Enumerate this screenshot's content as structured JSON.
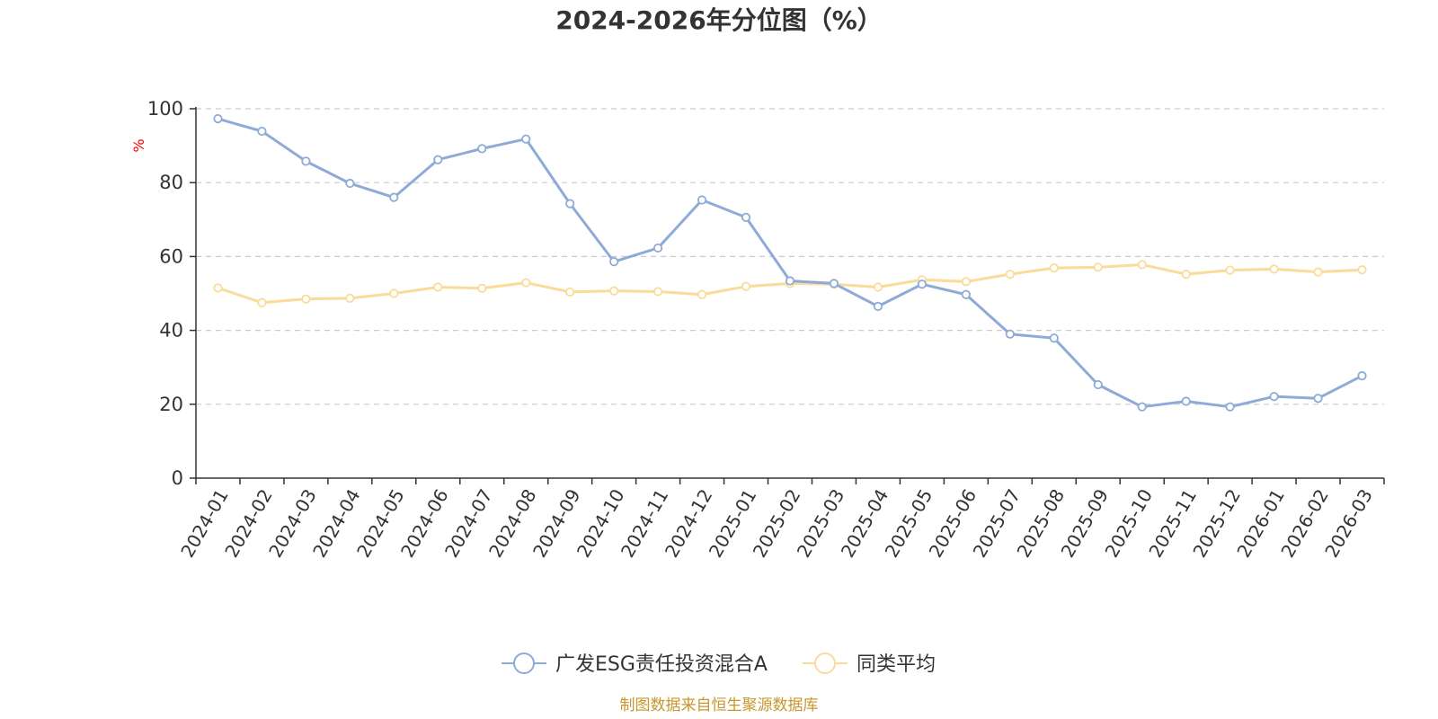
{
  "chart_data": {
    "type": "line",
    "title": "2024-2026年分位图（%）",
    "ylabel": "%",
    "ylim": [
      0,
      100
    ],
    "yticks": [
      0,
      20,
      40,
      60,
      80,
      100
    ],
    "grid": true,
    "legend_position": "bottom-center",
    "categories": [
      "2024-01",
      "2024-02",
      "2024-03",
      "2024-04",
      "2024-05",
      "2024-06",
      "2024-07",
      "2024-08",
      "2024-09",
      "2024-10",
      "2024-11",
      "2024-12",
      "2025-01",
      "2025-02",
      "2025-03",
      "2025-04",
      "2025-05",
      "2025-06",
      "2025-07",
      "2025-08",
      "2025-09",
      "2025-10",
      "2025-11",
      "2025-12",
      "2026-01",
      "2026-02",
      "2026-03"
    ],
    "series": [
      {
        "name": "广发ESG责任投资混合A",
        "color": "#8eabd8",
        "values": [
          97.3,
          93.9,
          85.8,
          79.8,
          76.0,
          86.2,
          89.2,
          91.8,
          74.3,
          58.6,
          62.3,
          75.3,
          70.6,
          53.4,
          52.7,
          46.5,
          52.5,
          49.7,
          39.0,
          37.9,
          25.3,
          19.3,
          20.8,
          19.3,
          22.1,
          21.6,
          27.7
        ]
      },
      {
        "name": "同类平均",
        "color": "#fbdb9a",
        "values": [
          51.5,
          47.5,
          48.5,
          48.7,
          50.0,
          51.7,
          51.4,
          52.9,
          50.4,
          50.7,
          50.5,
          49.7,
          51.9,
          52.7,
          52.5,
          51.7,
          53.7,
          53.2,
          55.2,
          56.9,
          57.1,
          57.8,
          55.2,
          56.3,
          56.6,
          55.8,
          56.4
        ]
      }
    ]
  },
  "footer": {
    "source": "制图数据来自恒生聚源数据库",
    "color": "#c8962e"
  },
  "colors": {
    "axis": "#333333",
    "grid": "#cccccc",
    "unit": "#ff0000"
  }
}
